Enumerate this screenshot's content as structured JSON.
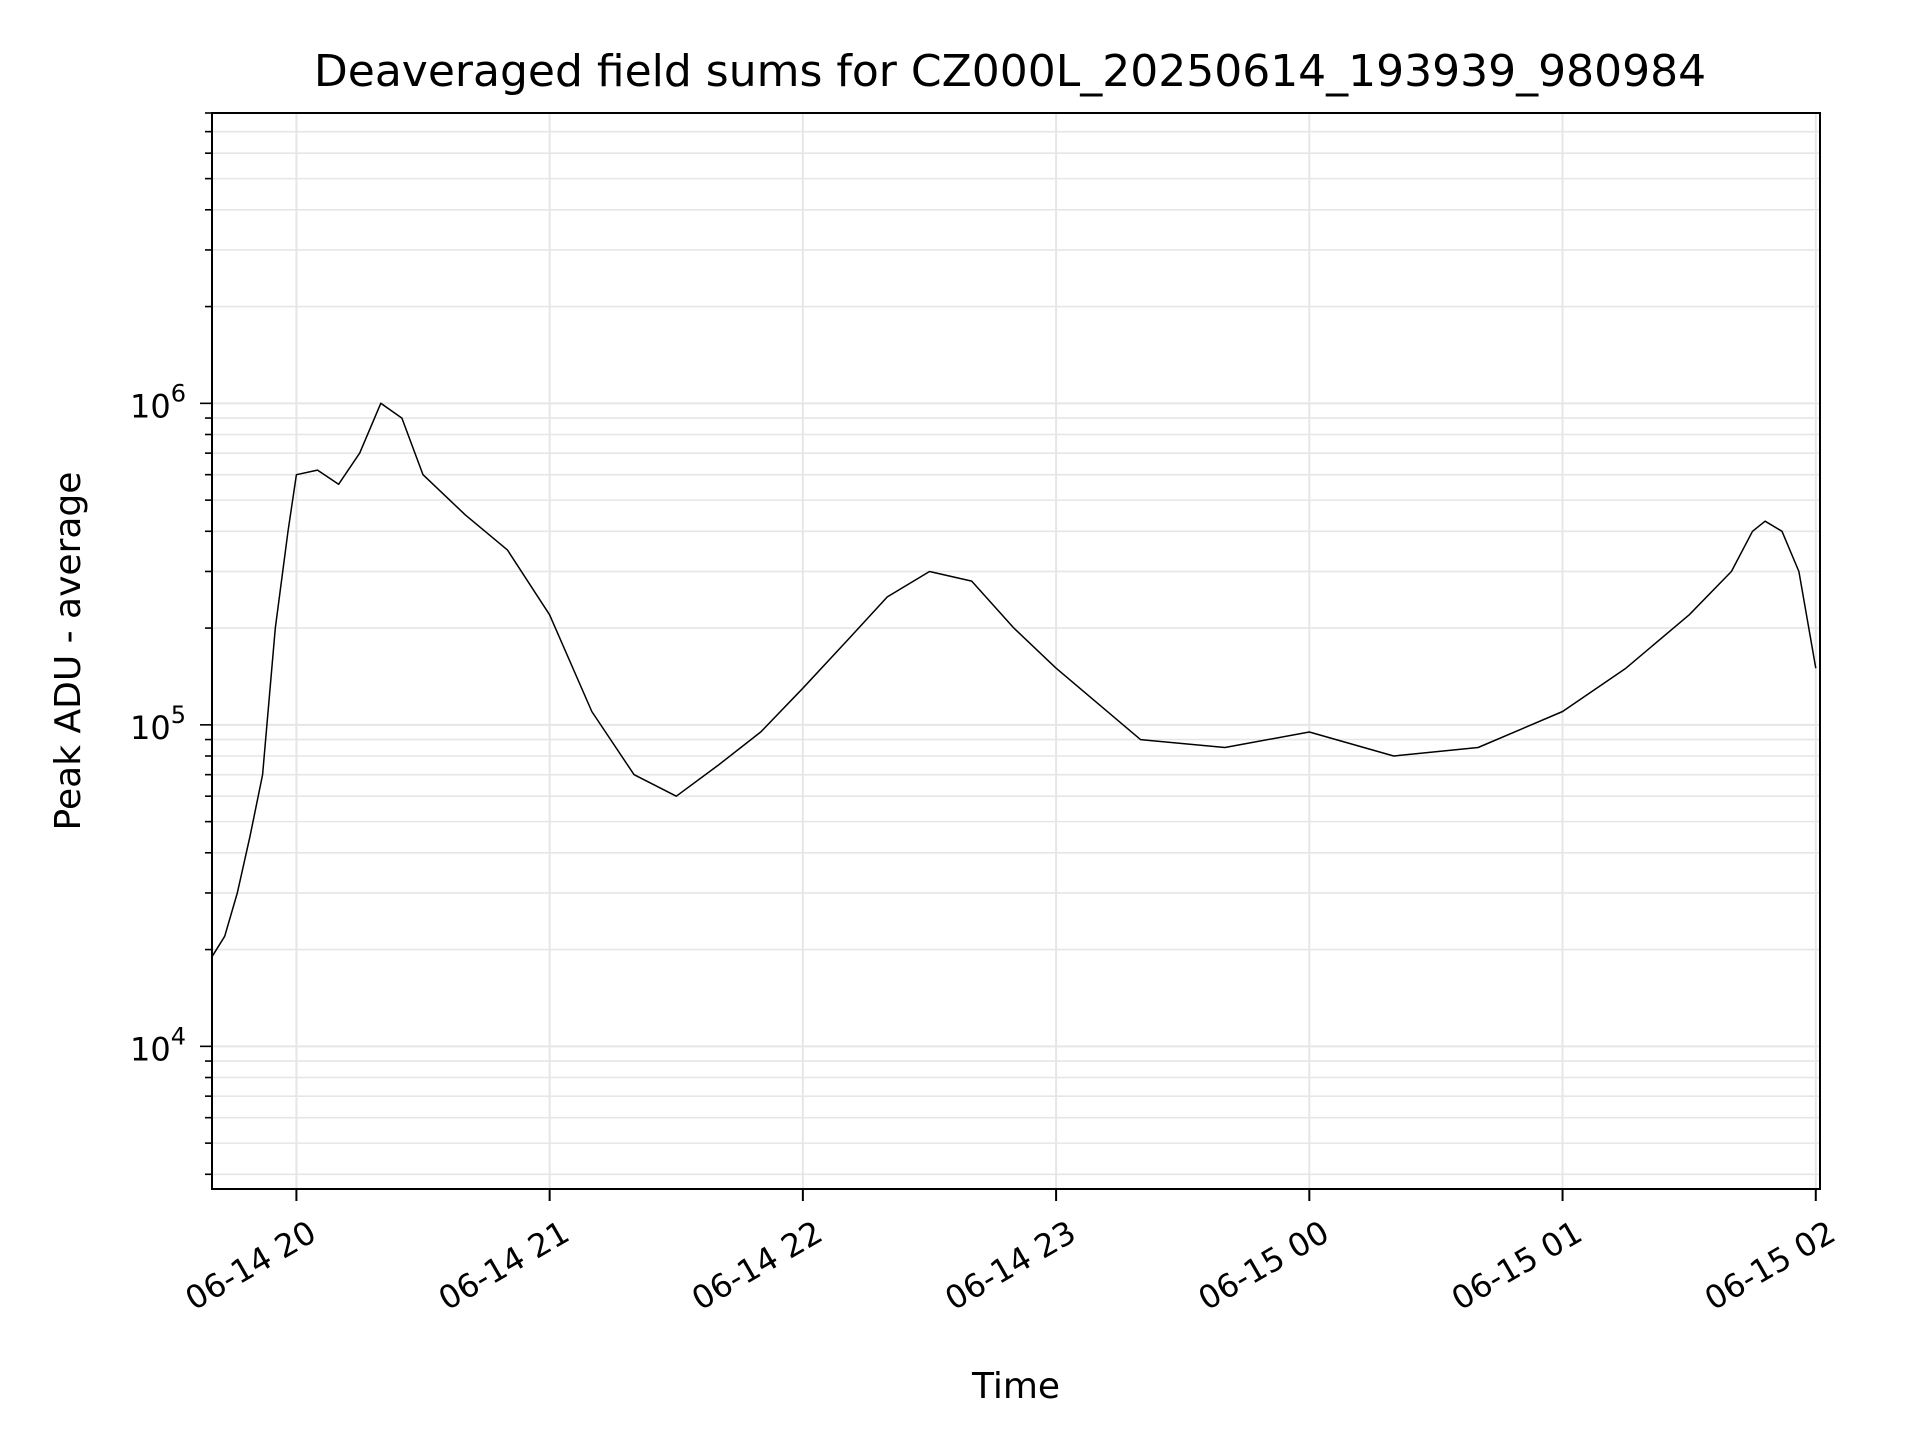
{
  "chart_data": {
    "type": "line",
    "title": "Deaveraged field sums for CZ000L_20250614_193939_980984",
    "xlabel": "Time",
    "ylabel": "Peak ADU - average",
    "yscale": "log",
    "ylim": [
      3600,
      8000000
    ],
    "xlim": [
      "06-14 19:40",
      "06-15 02:01"
    ],
    "grid": true,
    "line_color": "#000000",
    "x_tick_labels": [
      "06-14 20",
      "06-14 21",
      "06-14 22",
      "06-14 23",
      "06-15 00",
      "06-15 01",
      "06-15 02"
    ],
    "y_ticks": [
      {
        "base": "10",
        "exp": "4",
        "value": 10000
      },
      {
        "base": "10",
        "exp": "5",
        "value": 100000
      },
      {
        "base": "10",
        "exp": "6",
        "value": 1000000
      }
    ],
    "series": [
      {
        "x": [
          "06-14 19:40",
          "06-14 19:43",
          "06-14 19:46",
          "06-14 19:49",
          "06-14 19:52",
          "06-14 19:55",
          "06-14 19:58",
          "06-14 20:00",
          "06-14 20:05",
          "06-14 20:10",
          "06-14 20:15",
          "06-14 20:20",
          "06-14 20:25",
          "06-14 20:30",
          "06-14 20:40",
          "06-14 20:50",
          "06-14 21:00",
          "06-14 21:10",
          "06-14 21:20",
          "06-14 21:30",
          "06-14 21:40",
          "06-14 21:50",
          "06-14 22:00",
          "06-14 22:10",
          "06-14 22:20",
          "06-14 22:30",
          "06-14 22:40",
          "06-14 22:50",
          "06-14 23:00",
          "06-14 23:20",
          "06-14 23:40",
          "06-15 00:00",
          "06-15 00:20",
          "06-15 00:40",
          "06-15 01:00",
          "06-15 01:15",
          "06-15 01:30",
          "06-15 01:40",
          "06-15 01:45",
          "06-15 01:48",
          "06-15 01:52",
          "06-15 01:56",
          "06-15 02:00"
        ],
        "y": [
          19000,
          22000,
          30000,
          45000,
          70000,
          200000,
          400000,
          600000,
          620000,
          560000,
          700000,
          1000000,
          900000,
          600000,
          450000,
          350000,
          220000,
          110000,
          70000,
          60000,
          75000,
          95000,
          130000,
          180000,
          250000,
          300000,
          280000,
          200000,
          150000,
          90000,
          85000,
          95000,
          80000,
          85000,
          110000,
          150000,
          220000,
          300000,
          400000,
          430000,
          400000,
          300000,
          150000
        ]
      }
    ]
  }
}
